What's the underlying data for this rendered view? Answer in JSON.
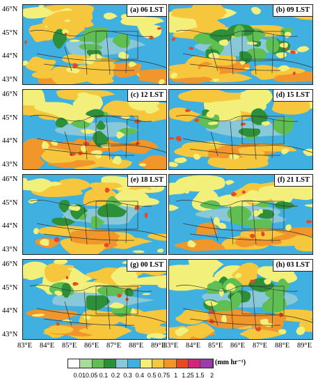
{
  "panels": [
    {
      "label": "(a) 06 LST"
    },
    {
      "label": "(b) 09 LST"
    },
    {
      "label": "(c) 12 LST"
    },
    {
      "label": "(d) 15 LST"
    },
    {
      "label": "(e) 18 LST"
    },
    {
      "label": "(f) 21 LST"
    },
    {
      "label": "(g) 00 LST"
    },
    {
      "label": "(h) 03 LST"
    }
  ],
  "axes": {
    "lat_ticks": [
      "46°N",
      "45°N",
      "44°N",
      "43°N"
    ],
    "lon_ticks": [
      "83°E",
      "84°E",
      "85°E",
      "86°E",
      "87°E",
      "88°E",
      "89°E"
    ]
  },
  "colorbar": {
    "labels": [
      "0.01",
      "0.05",
      "0.1",
      "0.2",
      "0.3",
      "0.4",
      "0.5",
      "0.75",
      "1",
      "1.25",
      "1.5",
      "2"
    ],
    "unit": "(mm hr⁻¹)",
    "colors": [
      "#ffffff",
      "#a8dc9a",
      "#5fbf52",
      "#2e8f3a",
      "#88c8d8",
      "#3fb0e0",
      "#f2f07a",
      "#f6c63c",
      "#f0962a",
      "#e64a24",
      "#d4247c",
      "#9b3ca8"
    ]
  }
}
